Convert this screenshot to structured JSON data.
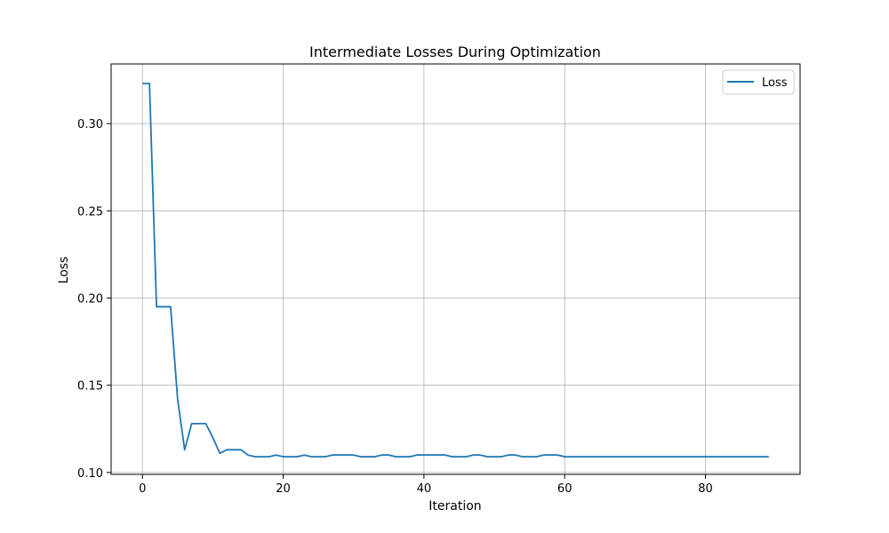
{
  "chart_data": {
    "type": "line",
    "title": "Intermediate Losses During Optimization",
    "xlabel": "Iteration",
    "ylabel": "Loss",
    "xlim": [
      -4.45,
      93.45
    ],
    "ylim": [
      0.0989,
      0.3342
    ],
    "xticks": [
      0,
      20,
      40,
      60,
      80
    ],
    "yticks": [
      0.1,
      0.15,
      0.2,
      0.25,
      0.3
    ],
    "ytick_labels": [
      "0.10",
      "0.15",
      "0.20",
      "0.25",
      "0.30"
    ],
    "grid": true,
    "legend_position": "upper right",
    "color": "#1f77b4",
    "series": [
      {
        "name": "Loss",
        "x": [
          0,
          1,
          2,
          3,
          4,
          5,
          6,
          7,
          8,
          9,
          10,
          11,
          12,
          13,
          14,
          15,
          16,
          17,
          18,
          19,
          20,
          21,
          22,
          23,
          24,
          25,
          26,
          27,
          28,
          29,
          30,
          31,
          32,
          33,
          34,
          35,
          36,
          37,
          38,
          39,
          40,
          41,
          42,
          43,
          44,
          45,
          46,
          47,
          48,
          49,
          50,
          51,
          52,
          53,
          54,
          55,
          56,
          57,
          58,
          59,
          60,
          61,
          62,
          63,
          64,
          65,
          66,
          67,
          68,
          69,
          70,
          71,
          72,
          73,
          74,
          75,
          76,
          77,
          78,
          79,
          80,
          81,
          82,
          83,
          84,
          85,
          86,
          87,
          88,
          89
        ],
        "values": [
          0.323,
          0.323,
          0.195,
          0.195,
          0.195,
          0.142,
          0.113,
          0.128,
          0.128,
          0.128,
          0.12,
          0.111,
          0.113,
          0.113,
          0.113,
          0.11,
          0.109,
          0.109,
          0.109,
          0.11,
          0.109,
          0.109,
          0.109,
          0.11,
          0.109,
          0.109,
          0.109,
          0.11,
          0.11,
          0.11,
          0.11,
          0.109,
          0.109,
          0.109,
          0.11,
          0.11,
          0.109,
          0.109,
          0.109,
          0.11,
          0.11,
          0.11,
          0.11,
          0.11,
          0.109,
          0.109,
          0.109,
          0.11,
          0.11,
          0.109,
          0.109,
          0.109,
          0.11,
          0.11,
          0.109,
          0.109,
          0.109,
          0.11,
          0.11,
          0.11,
          0.109,
          0.109,
          0.109,
          0.109,
          0.109,
          0.109,
          0.109,
          0.109,
          0.109,
          0.109,
          0.109,
          0.109,
          0.109,
          0.109,
          0.109,
          0.109,
          0.109,
          0.109,
          0.109,
          0.109,
          0.109,
          0.109,
          0.109,
          0.109,
          0.109,
          0.109,
          0.109,
          0.109,
          0.109,
          0.109
        ]
      }
    ]
  }
}
